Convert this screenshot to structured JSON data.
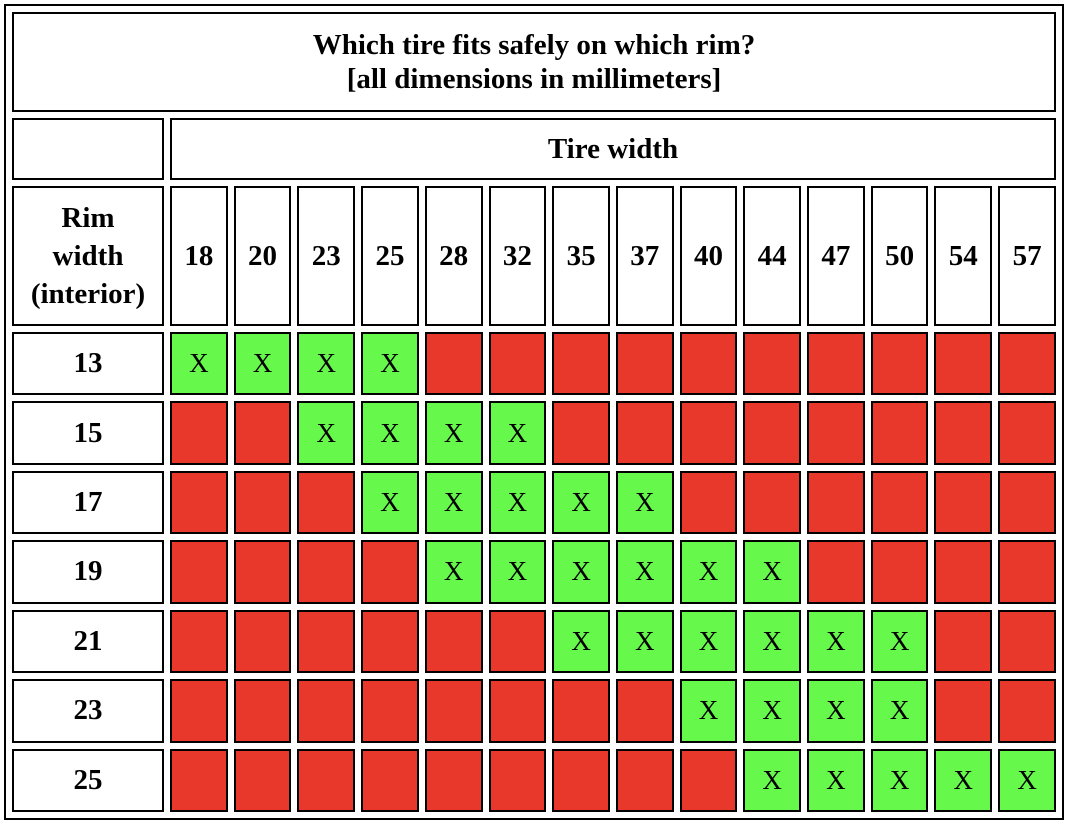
{
  "table": {
    "title": [
      "Which tire fits safely on which rim?",
      "[all dimensions in millimeters]"
    ],
    "column_group": "Tire width",
    "row_header": [
      "Rim",
      "width",
      "(interior)"
    ],
    "tire_widths": [
      18,
      20,
      23,
      25,
      28,
      32,
      35,
      37,
      40,
      44,
      47,
      50,
      54,
      57
    ],
    "colors": {
      "fit": "#66f84a",
      "no_fit": "#e8372b"
    },
    "rows": [
      {
        "rim": 13,
        "cells": [
          "X",
          "X",
          "X",
          "X",
          null,
          null,
          null,
          null,
          null,
          null,
          null,
          null,
          null,
          null
        ]
      },
      {
        "rim": 15,
        "cells": [
          null,
          null,
          "X",
          "X",
          "X",
          "X",
          null,
          null,
          null,
          null,
          null,
          null,
          null,
          null
        ]
      },
      {
        "rim": 17,
        "cells": [
          null,
          null,
          null,
          "X",
          "X",
          "X",
          "X",
          "X",
          null,
          null,
          null,
          null,
          null,
          null
        ]
      },
      {
        "rim": 19,
        "cells": [
          null,
          null,
          null,
          null,
          "X",
          "X",
          "X",
          "X",
          "X",
          "X",
          null,
          null,
          null,
          null
        ]
      },
      {
        "rim": 21,
        "cells": [
          null,
          null,
          null,
          null,
          null,
          null,
          "X",
          "X",
          "X",
          "X",
          "X",
          "X",
          null,
          null
        ]
      },
      {
        "rim": 23,
        "cells": [
          null,
          null,
          null,
          null,
          null,
          null,
          null,
          null,
          "X",
          "X",
          "X",
          "X",
          null,
          null
        ]
      },
      {
        "rim": 25,
        "cells": [
          null,
          null,
          null,
          null,
          null,
          null,
          null,
          null,
          null,
          "X",
          "X",
          "X",
          "X",
          "X"
        ]
      }
    ]
  }
}
